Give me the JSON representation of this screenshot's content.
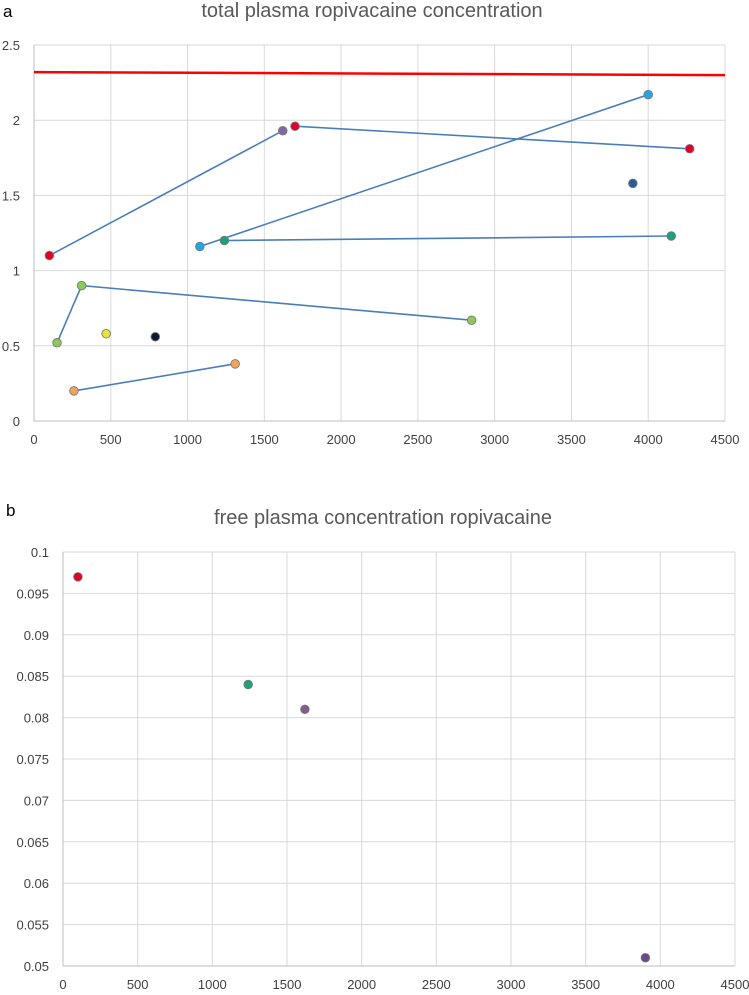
{
  "chart_data": [
    {
      "type": "scatter",
      "panel_label": "a",
      "title": "total plasma ropivacaine concentration",
      "xlabel": "",
      "ylabel": "",
      "xlim": [
        0,
        4500
      ],
      "ylim": [
        0,
        2.5
      ],
      "xticks": [
        0,
        500,
        1000,
        1500,
        2000,
        2500,
        3000,
        3500,
        4000,
        4500
      ],
      "yticks": [
        0,
        0.5,
        1,
        1.5,
        2,
        2.5
      ],
      "xtick_labels": [
        "0",
        "500",
        "1000",
        "1500",
        "2000",
        "2500",
        "3000",
        "3500",
        "4000",
        "4500"
      ],
      "ytick_labels": [
        "0",
        "0.5",
        "1",
        "1.5",
        "2",
        "2.5"
      ],
      "grid": true,
      "line_color": "#4a7ebb",
      "reference_line": {
        "x": [
          0,
          4500
        ],
        "y": [
          2.32,
          2.3
        ],
        "color": "#ff0000"
      },
      "series": [
        {
          "name": "series-red-purple",
          "color": "#e0002a",
          "points": [
            [
              100,
              1.1
            ],
            [
              1620,
              1.93
            ]
          ],
          "point_colors": [
            "#e0002a",
            "#7f6aa8"
          ],
          "connected": true
        },
        {
          "name": "series-red-b",
          "color": "#e0002a",
          "points": [
            [
              1700,
              1.96
            ],
            [
              4270,
              1.81
            ]
          ],
          "connected": true
        },
        {
          "name": "series-blue",
          "color": "#1ea7e6",
          "points": [
            [
              1080,
              1.16
            ],
            [
              4000,
              2.17
            ]
          ],
          "connected": true
        },
        {
          "name": "series-teal",
          "color": "#1aa37a",
          "points": [
            [
              1240,
              1.2
            ],
            [
              4150,
              1.23
            ]
          ],
          "connected": true
        },
        {
          "name": "series-green",
          "color": "#8cc85a",
          "points": [
            [
              150,
              0.52
            ],
            [
              310,
              0.9
            ],
            [
              2850,
              0.67
            ]
          ],
          "connected": true
        },
        {
          "name": "series-orange",
          "color": "#f5a25a",
          "points": [
            [
              260,
              0.2
            ],
            [
              1310,
              0.38
            ]
          ],
          "connected": true
        },
        {
          "name": "series-darkblue",
          "color": "#2a5a9a",
          "points": [
            [
              3900,
              1.58
            ]
          ],
          "connected": false
        },
        {
          "name": "series-yellow",
          "color": "#e6e63a",
          "points": [
            [
              470,
              0.58
            ]
          ],
          "connected": false
        },
        {
          "name": "series-navy",
          "color": "#101838",
          "points": [
            [
              790,
              0.56
            ]
          ],
          "connected": false
        }
      ]
    },
    {
      "type": "scatter",
      "panel_label": "b",
      "title": "free plasma concentration ropivacaine",
      "xlabel": "",
      "ylabel": "",
      "xlim": [
        0,
        4500
      ],
      "ylim": [
        0.05,
        0.1
      ],
      "xticks": [
        0,
        500,
        1000,
        1500,
        2000,
        2500,
        3000,
        3500,
        4000,
        4500
      ],
      "yticks": [
        0.05,
        0.055,
        0.06,
        0.065,
        0.07,
        0.075,
        0.08,
        0.085,
        0.09,
        0.095,
        0.1
      ],
      "xtick_labels": [
        "0",
        "500",
        "1000",
        "1500",
        "2000",
        "2500",
        "3000",
        "3500",
        "4000",
        "4500"
      ],
      "ytick_labels": [
        "0.05",
        "0.055",
        "0.06",
        "0.065",
        "0.07",
        "0.075",
        "0.08",
        "0.085",
        "0.09",
        "0.095",
        "0.1"
      ],
      "grid": true,
      "series": [
        {
          "name": "point-red",
          "color": "#e0002a",
          "points": [
            [
              100,
              0.097
            ]
          ],
          "connected": false
        },
        {
          "name": "point-green",
          "color": "#1aa37a",
          "points": [
            [
              1240,
              0.084
            ]
          ],
          "connected": false
        },
        {
          "name": "point-purple",
          "color": "#8a5a8a",
          "points": [
            [
              1620,
              0.081
            ]
          ],
          "connected": false
        },
        {
          "name": "point-violet",
          "color": "#6a4a8a",
          "points": [
            [
              3900,
              0.051
            ]
          ],
          "connected": false
        }
      ]
    }
  ]
}
